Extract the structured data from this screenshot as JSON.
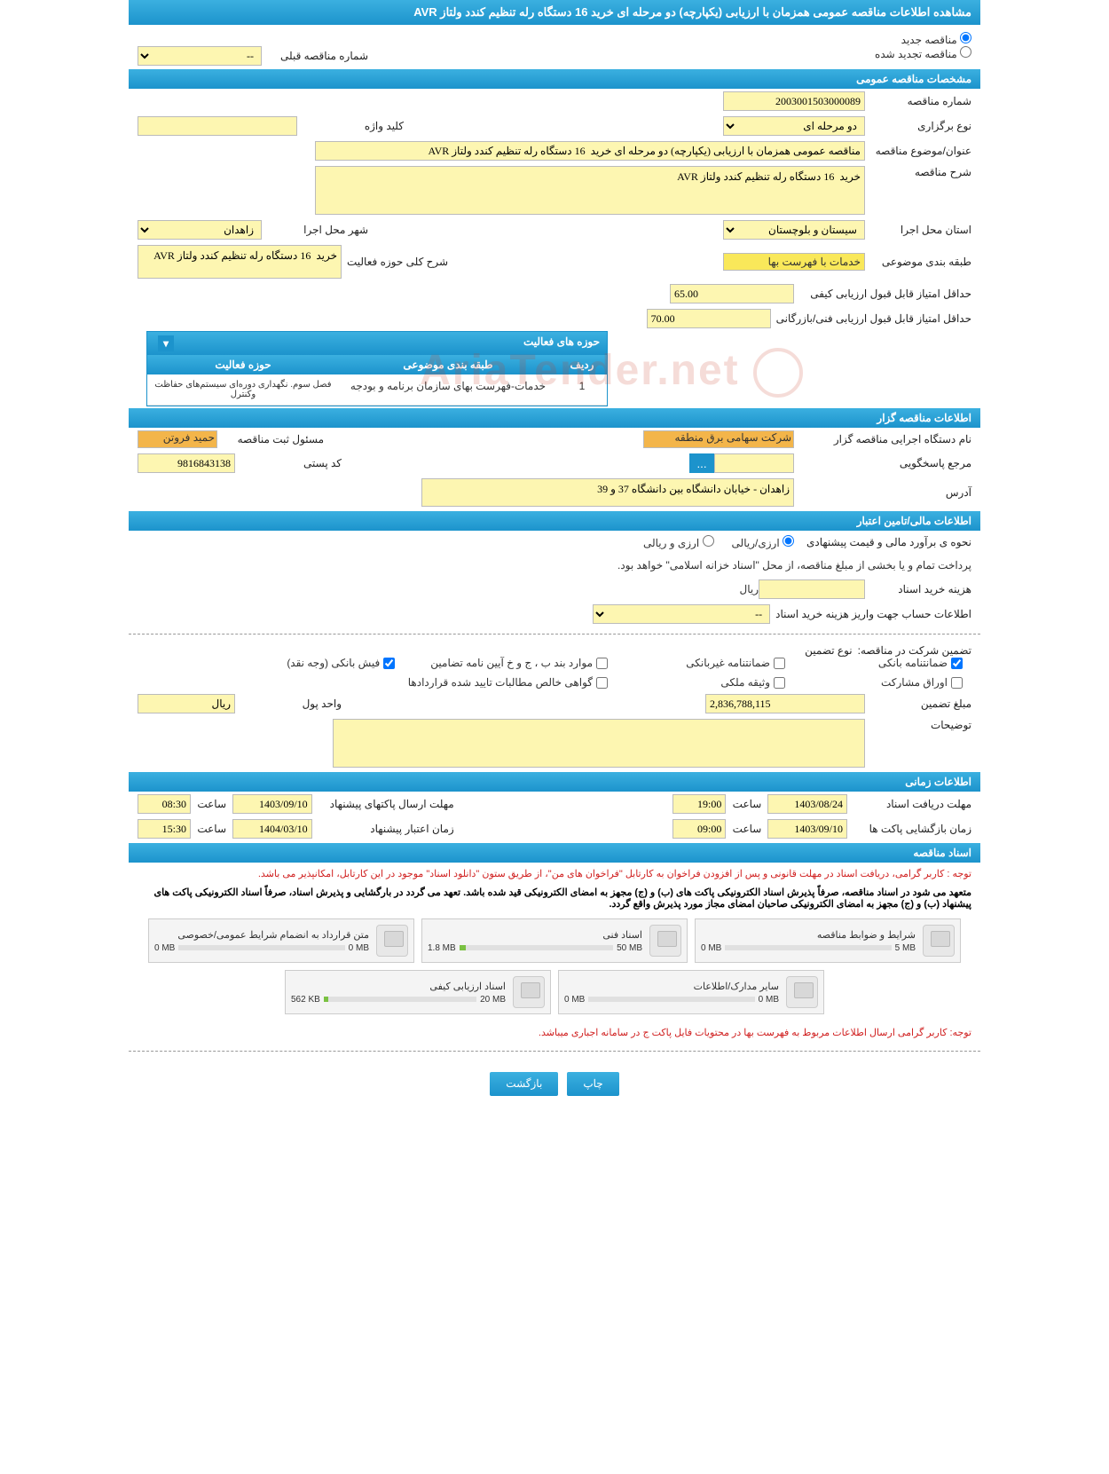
{
  "colors": {
    "header_bg": "#1c93cc",
    "input_bg": "#fdf6b1",
    "highlight_orange": "#f3b54a",
    "highlight_yellow": "#f9e85a",
    "note_red": "#d02020"
  },
  "page_title": "مشاهده اطلاعات مناقصه عمومی همزمان با ارزیابی (یکپارچه) دو مرحله ای خرید 16 دستگاه رله تنظیم کندد ولتاز AVR",
  "tender_type_radios": {
    "new": "مناقصه جدید",
    "renew": "مناقصه تجدید شده"
  },
  "prev_tender": {
    "label": "شماره مناقصه قبلی",
    "value": "--"
  },
  "sections": {
    "general": "مشخصات مناقصه عمومی",
    "organizer": "اطلاعات مناقصه گزار",
    "financial": "اطلاعات مالی/تامین اعتبار",
    "timing": "اطلاعات زمانی",
    "docs": "اسناد مناقصه"
  },
  "general": {
    "tender_no_lbl": "شماره مناقصه",
    "tender_no": "2003001503000089",
    "hold_type_lbl": "نوع برگزاری",
    "hold_type": "دو مرحله ای",
    "keyword_lbl": "کلید واژه",
    "keyword": "",
    "subject_lbl": "عنوان/موضوع مناقصه",
    "subject": "مناقصه عمومی همزمان با ارزیابی (یکپارچه) دو مرحله ای خرید  16 دستگاه رله تنظیم کندد ولتاز AVR",
    "desc_lbl": "شرح مناقصه",
    "desc": "خرید  16 دستگاه رله تنظیم کندد ولتاز AVR",
    "province_lbl": "استان محل اجرا",
    "province": "سیستان و بلوچستان",
    "city_lbl": "شهر محل اجرا",
    "city": "زاهدان",
    "category_lbl": "طبقه بندی موضوعی",
    "category": "خدمات با فهرست بها",
    "activity_lbl": "شرح کلی حوزه فعالیت",
    "activity": "خرید  16 دستگاه رله تنظیم کندد ولتاز AVR",
    "min_qual_score_lbl": "حداقل امتیاز قابل قبول ارزیابی کیفی",
    "min_qual_score": "65.00",
    "min_tech_score_lbl": "حداقل امتیاز قابل قبول ارزیابی فنی/بازرگانی",
    "min_tech_score": "70.00"
  },
  "activity_table": {
    "title": "حوزه های فعالیت",
    "col_radif": "ردیف",
    "col_category": "طبقه بندی موضوعی",
    "col_field": "حوزه فعالیت",
    "rows": [
      {
        "n": "1",
        "cat": "خدمات-فهرست بهای سازمان برنامه و بودجه",
        "field": "فصل سوم. نگهداری دوره‌ای سیستم‌های حفاظت وکنترل"
      }
    ]
  },
  "organizer": {
    "org_lbl": "نام دستگاه اجرایی مناقصه گزار",
    "org": "شرکت سهامی برق منطقه",
    "reg_owner_lbl": "مسئول ثبت مناقصه",
    "reg_owner": "حمید فروتن",
    "contact_lbl": "مرجع پاسخگویی",
    "contact": "",
    "postal_lbl": "کد پستی",
    "postal": "9816843138",
    "address_lbl": "آدرس",
    "address": "زاهدان - خیابان دانشگاه بین دانشگاه 37 و 39"
  },
  "financial": {
    "estimate_lbl": "نحوه ی برآورد مالی و قیمت پیشنهادی",
    "radio_rial": "ارزی/ریالی",
    "radio_fx": "ارزی و ریالی",
    "pay_note": "پرداخت تمام و یا بخشی از مبلغ مناقصه، از محل \"اسناد خزانه اسلامی\" خواهد بود.",
    "doc_cost_lbl": "هزینه خرید اسناد",
    "doc_cost": "",
    "doc_cost_unit": "ریال",
    "acct_info_lbl": "اطلاعات حساب جهت واریز هزینه خرید اسناد",
    "acct_info": "--",
    "guarantee_head": "تضمین شرکت در مناقصه:",
    "guarantee_type_lbl": "نوع تضمین",
    "guarantee_opts": {
      "bank_guarantee": "ضمانتنامه بانکی",
      "nonbank_guarantee": "ضمانتنامه غیربانکی",
      "items_bpj": "موارد بند ب ، ج و خ آیین نامه تضامین",
      "bank_receipt": "فیش بانکی (وجه نقد)",
      "participation": "اوراق مشارکت",
      "property_pledge": "وثیقه ملکی",
      "contract_claims": "گواهی خالص مطالبات تایید شده قراردادها"
    },
    "guarantee_checked": [
      "bank_guarantee",
      "bank_receipt"
    ],
    "guarantee_amount_lbl": "مبلغ تضمین",
    "guarantee_amount": "2,836,788,115",
    "currency_lbl": "واحد پول",
    "currency": "ریال",
    "notes_lbl": "توضیحات",
    "notes": ""
  },
  "timing": {
    "receive_deadline_lbl": "مهلت دریافت اسناد",
    "receive_deadline_date": "1403/08/24",
    "receive_deadline_time_lbl": "ساعت",
    "receive_deadline_time": "19:00",
    "submit_deadline_lbl": "مهلت ارسال پاکتهای پیشنهاد",
    "submit_deadline_date": "1403/09/10",
    "submit_deadline_time_lbl": "ساعت",
    "submit_deadline_time": "08:30",
    "open_time_lbl": "زمان بازگشایی پاکت ها",
    "open_date": "1403/09/10",
    "open_time_field_lbl": "ساعت",
    "open_time": "09:00",
    "validity_lbl": "زمان اعتبار پیشنهاد",
    "validity_date": "1404/03/10",
    "validity_time_lbl": "ساعت",
    "validity_time": "15:30"
  },
  "docs_notes": {
    "n1": "توجه : کاربر گرامی، دریافت اسناد در مهلت قانونی و پس از افزودن فراخوان به کارتابل \"فراخوان های من\"، از طریق ستون \"دانلود اسناد\" موجود در این کارتابل، امکانپذیر می باشد.",
    "n2": "متعهد می شود در اسناد مناقصه، صرفاً پذیرش اسناد الکترونیکی پاکت های (ب) و (ج) مجهز به امضای الکترونیکی قید شده باشد. تعهد می گردد در بارگشایی و پذیرش اسناد، صرفاً اسناد الکترونیکی پاکت های پیشنهاد (ب) و (ج) مجهز به امضای الکترونیکی صاحبان امضای مجاز مورد پذیرش واقع گردد.",
    "n3": "توجه: کاربر گرامی ارسال اطلاعات مربوط به فهرست بها در محتویات فایل پاکت ج در سامانه اجباری میباشد."
  },
  "files": [
    {
      "title": "شرایط و ضوابط مناقصه",
      "used": "0 MB",
      "cap": "5 MB",
      "pct": 0
    },
    {
      "title": "اسناد فنی",
      "used": "1.8 MB",
      "cap": "50 MB",
      "pct": 4
    },
    {
      "title": "متن قرارداد به انضمام شرایط عمومی/خصوصی",
      "used": "0 MB",
      "cap": "0 MB",
      "pct": 0
    },
    {
      "title": "سایر مدارک/اطلاعات",
      "used": "0 MB",
      "cap": "0 MB",
      "pct": 0
    },
    {
      "title": "اسناد ارزیابی کیفی",
      "used": "562 KB",
      "cap": "20 MB",
      "pct": 3
    }
  ],
  "buttons": {
    "print": "چاپ",
    "back": "بازگشت",
    "more": "..."
  },
  "watermark": "AriaTender.net"
}
